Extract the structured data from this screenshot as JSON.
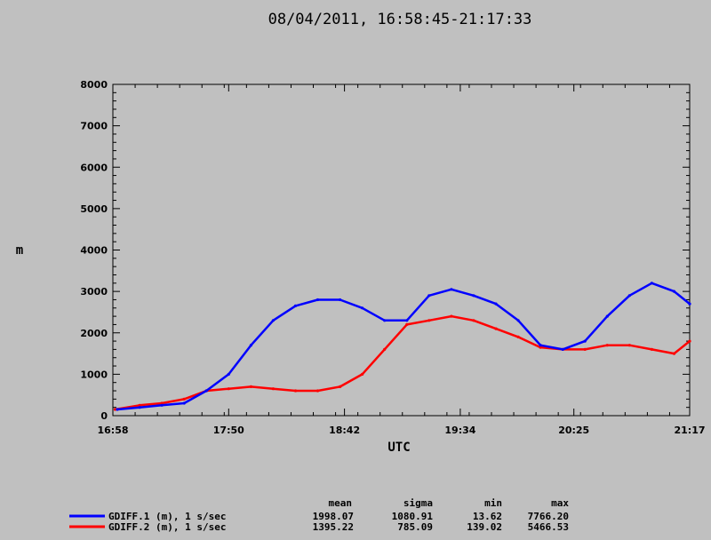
{
  "chart_data": {
    "type": "line",
    "title": "08/04/2011, 16:58:45-21:17:33",
    "xlabel": "UTC",
    "ylabel": "m",
    "xlim": [
      "16:58",
      "21:17"
    ],
    "ylim": [
      0,
      8000
    ],
    "x_ticks": [
      "16:58",
      "17:50",
      "18:42",
      "19:34",
      "20:25",
      "21:17"
    ],
    "y_ticks": [
      0,
      1000,
      2000,
      3000,
      4000,
      5000,
      6000,
      7000,
      8000
    ],
    "colors": {
      "GDIFF.1": "#0000ff",
      "GDIFF.2": "#ff0000"
    },
    "stats_header": {
      "mean": "mean",
      "sigma": "sigma",
      "min": "min",
      "max": "max"
    },
    "series": [
      {
        "name": "GDIFF.1 (m), 1 s/sec",
        "color": "#0000ff",
        "mean": "1998.07",
        "sigma": "1080.91",
        "min": "13.62",
        "max": "7766.20",
        "x": [
          "17:00",
          "17:10",
          "17:20",
          "17:30",
          "17:40",
          "17:50",
          "18:00",
          "18:10",
          "18:20",
          "18:30",
          "18:40",
          "18:50",
          "19:00",
          "19:10",
          "19:20",
          "19:30",
          "19:40",
          "19:50",
          "20:00",
          "20:10",
          "20:20",
          "20:30",
          "20:40",
          "20:50",
          "21:00",
          "21:10",
          "21:17"
        ],
        "values": [
          150,
          200,
          250,
          300,
          600,
          1000,
          1700,
          2300,
          2650,
          2800,
          2800,
          2600,
          2300,
          2300,
          2900,
          3050,
          2900,
          2700,
          2300,
          1700,
          1600,
          1800,
          2400,
          2900,
          3200,
          3000,
          2700
        ]
      },
      {
        "name": "GDIFF.2 (m), 1 s/sec",
        "color": "#ff0000",
        "mean": "1395.22",
        "sigma": "785.09",
        "min": "139.02",
        "max": "5466.53",
        "x": [
          "16:59",
          "17:10",
          "17:20",
          "17:30",
          "17:40",
          "17:50",
          "18:00",
          "18:10",
          "18:20",
          "18:30",
          "18:40",
          "18:50",
          "19:00",
          "19:10",
          "19:20",
          "19:30",
          "19:40",
          "19:50",
          "20:00",
          "20:10",
          "20:20",
          "20:30",
          "20:40",
          "20:50",
          "21:00",
          "21:10",
          "21:17"
        ],
        "values": [
          150,
          250,
          300,
          400,
          600,
          650,
          700,
          650,
          600,
          600,
          700,
          1000,
          1600,
          2200,
          2300,
          2400,
          2300,
          2100,
          1900,
          1650,
          1600,
          1600,
          1700,
          1700,
          1600,
          1500,
          1800
        ]
      }
    ]
  }
}
